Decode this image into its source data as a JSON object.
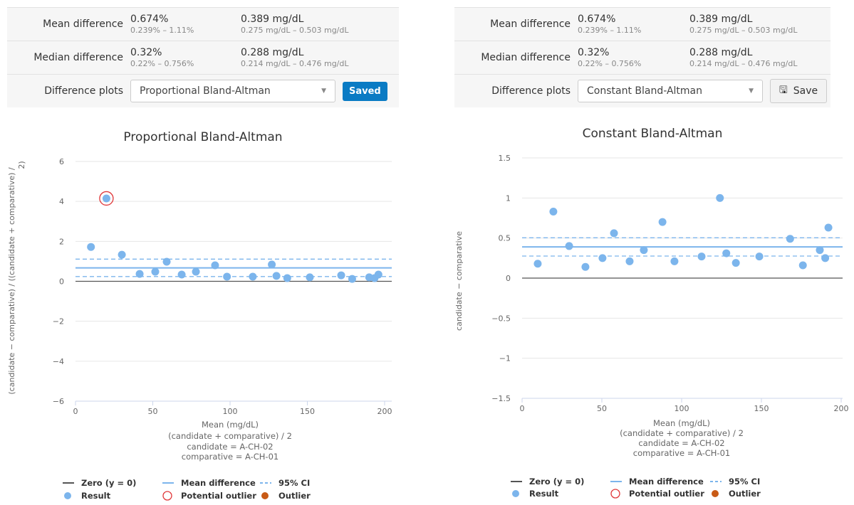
{
  "panels": [
    {
      "mean": {
        "label": "Mean difference",
        "pct": "0.674%",
        "pct_ci": "0.239% – 1.11%",
        "abs": "0.389 mg/dL",
        "abs_ci": "0.275 mg/dL – 0.503 mg/dL"
      },
      "median": {
        "label": "Median difference",
        "pct": "0.32%",
        "pct_ci": "0.22% – 0.756%",
        "abs": "0.288 mg/dL",
        "abs_ci": "0.214 mg/dL – 0.476 mg/dL"
      },
      "plots": {
        "label": "Difference plots",
        "selected": "Proportional Bland-Altman",
        "button": "Saved"
      }
    },
    {
      "mean": {
        "label": "Mean difference",
        "pct": "0.674%",
        "pct_ci": "0.239% – 1.11%",
        "abs": "0.389 mg/dL",
        "abs_ci": "0.275 mg/dL – 0.503 mg/dL"
      },
      "median": {
        "label": "Median difference",
        "pct": "0.32%",
        "pct_ci": "0.22% – 0.756%",
        "abs": "0.288 mg/dL",
        "abs_ci": "0.214 mg/dL – 0.476 mg/dL"
      },
      "plots": {
        "label": "Difference plots",
        "selected": "Constant Bland-Altman",
        "button": "Save",
        "button_icon": "floppy-disk-icon"
      }
    }
  ],
  "colors": {
    "result": "#7cb5ec",
    "mean": "#7cb5ec",
    "ci": "#7cb5ec",
    "zero": "#555555",
    "potential_outlier": "#e0383a",
    "outlier": "#c85a16",
    "saved_button": "#0a7bc4"
  },
  "legend": {
    "zero": "Zero (y = 0)",
    "mean": "Mean difference",
    "ci": "95% CI",
    "result": "Result",
    "potential": "Potential outlier",
    "outlier": "Outlier"
  },
  "chart_data": [
    {
      "type": "scatter",
      "title": "Proportional Bland-Altman",
      "ylabel": "(candidate − comparative) / ((candidate + comparative) / 2)",
      "xlabel_lines": [
        "Mean (mg/dL)",
        "(candidate + comparative) / 2",
        "candidate = A-CH-02",
        "comparative = A-CH-01"
      ],
      "xlim": [
        0,
        200
      ],
      "ylim": [
        -6,
        6
      ],
      "xticks": [
        0,
        50,
        100,
        150,
        200
      ],
      "yticks": [
        -6,
        -4,
        -2,
        0,
        2,
        4,
        6
      ],
      "ytick_labels": [
        "−6",
        "−4",
        "−2",
        "0",
        "2",
        "4",
        "6"
      ],
      "mean": 0.674,
      "ci": [
        0.239,
        1.11
      ],
      "points": [
        [
          10,
          1.72
        ],
        [
          20,
          4.15
        ],
        [
          30,
          1.33
        ],
        [
          41.5,
          0.37
        ],
        [
          51.6,
          0.48
        ],
        [
          59,
          0.98
        ],
        [
          68.7,
          0.34
        ],
        [
          77.9,
          0.48
        ],
        [
          90.3,
          0.8
        ],
        [
          98,
          0.23
        ],
        [
          114.7,
          0.23
        ],
        [
          127,
          0.84
        ],
        [
          130,
          0.27
        ],
        [
          137,
          0.16
        ],
        [
          151.6,
          0.2
        ],
        [
          171.9,
          0.3
        ],
        [
          179,
          0.12
        ],
        [
          190,
          0.2
        ],
        [
          193.5,
          0.16
        ],
        [
          196,
          0.34
        ]
      ],
      "potential_outliers": [
        [
          20,
          4.15
        ]
      ],
      "legend_position": "bottom"
    },
    {
      "type": "scatter",
      "title": "Constant Bland-Altman",
      "ylabel": "candidate − comparative",
      "xlabel_lines": [
        "Mean (mg/dL)",
        "(candidate + comparative) / 2",
        "candidate = A-CH-02",
        "comparative = A-CH-01"
      ],
      "xlim": [
        0,
        200
      ],
      "ylim": [
        -1.5,
        1.5
      ],
      "xticks": [
        0,
        50,
        100,
        150,
        200
      ],
      "yticks": [
        -1.5,
        -1,
        -0.5,
        0,
        0.5,
        1,
        1.5
      ],
      "ytick_labels": [
        "−1.5",
        "−1",
        "−0.5",
        "0",
        "0.5",
        "1",
        "1.5"
      ],
      "mean": 0.389,
      "ci": [
        0.275,
        0.503
      ],
      "points": [
        [
          9.8,
          0.18
        ],
        [
          19.6,
          0.83
        ],
        [
          29.5,
          0.4
        ],
        [
          39.7,
          0.14
        ],
        [
          50.4,
          0.25
        ],
        [
          57.6,
          0.56
        ],
        [
          67.4,
          0.21
        ],
        [
          76.3,
          0.35
        ],
        [
          88,
          0.7
        ],
        [
          95.5,
          0.21
        ],
        [
          112.5,
          0.27
        ],
        [
          124,
          1.0
        ],
        [
          128,
          0.31
        ],
        [
          134,
          0.19
        ],
        [
          148.7,
          0.27
        ],
        [
          168,
          0.49
        ],
        [
          176,
          0.16
        ],
        [
          186.6,
          0.35
        ],
        [
          190,
          0.25
        ],
        [
          192,
          0.63
        ]
      ],
      "potential_outliers": [],
      "legend_position": "bottom"
    }
  ]
}
